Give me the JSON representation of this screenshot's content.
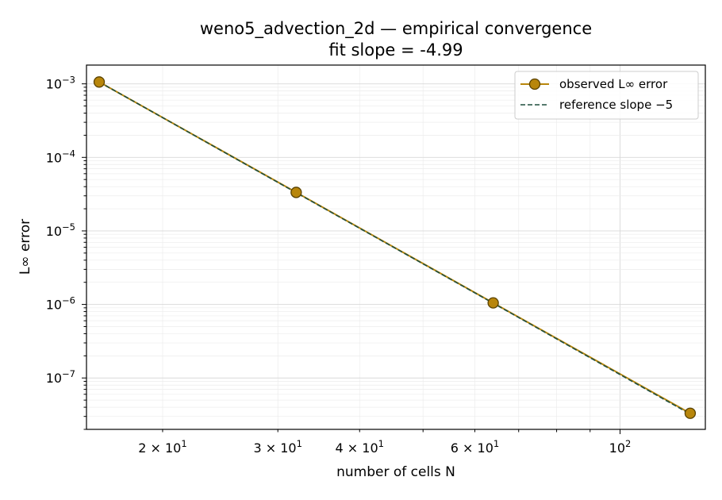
{
  "chart_data": {
    "type": "line",
    "title": "weno5_advection_2d — empirical convergence",
    "subtitle": "fit slope = -4.99",
    "xlabel": "number of cells N",
    "ylabel": "L∞ error",
    "x_scale": "log",
    "y_scale": "log",
    "xlim": [
      15.3,
      135
    ],
    "ylim": [
      2e-08,
      0.0018
    ],
    "grid": true,
    "legend_position": "top-right",
    "x_ticks": [
      {
        "value": 20,
        "mantissa": "2",
        "exponent": "1"
      },
      {
        "value": 30,
        "mantissa": "3",
        "exponent": "1"
      },
      {
        "value": 40,
        "mantissa": "4",
        "exponent": "1"
      },
      {
        "value": 60,
        "mantissa": "6",
        "exponent": "1"
      },
      {
        "value": 100,
        "mantissa": "",
        "exponent": "2"
      }
    ],
    "y_ticks": [
      {
        "value": 0.001,
        "exponent": "−3"
      },
      {
        "value": 0.0001,
        "exponent": "−4"
      },
      {
        "value": 1e-05,
        "exponent": "−5"
      },
      {
        "value": 1e-06,
        "exponent": "−6"
      },
      {
        "value": 1e-07,
        "exponent": "−7"
      }
    ],
    "series": [
      {
        "name": "observed L∞ error",
        "style": "solid-markers",
        "color": "#b8860b",
        "marker_fill": "#b8860b",
        "marker_edge": "#5a4200",
        "x": [
          16,
          32,
          64,
          128
        ],
        "y": [
          0.00106,
          3.34e-05,
          1.05e-06,
          3.31e-08
        ]
      },
      {
        "name": "reference slope −5",
        "style": "dashed",
        "color": "#1f4e3d",
        "x": [
          16,
          32,
          64,
          128
        ],
        "y": [
          0.00106,
          3.31e-05,
          1.04e-06,
          3.23e-08
        ]
      }
    ]
  }
}
